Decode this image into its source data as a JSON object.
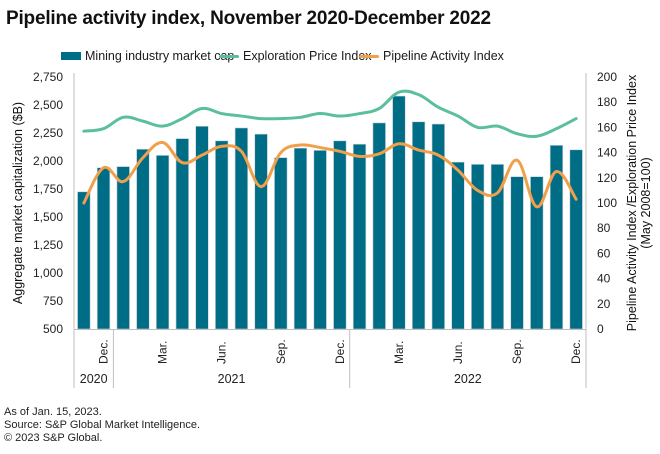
{
  "title": "Pipeline activity index, November 2020-December 2022",
  "legend": {
    "bar_label": "Mining industry market cap",
    "exploration_label": "Exploration Price Index",
    "pipeline_label": "Pipeline Activity Index"
  },
  "colors": {
    "bar": "#006D87",
    "exploration": "#5BBF9C",
    "pipeline": "#F0A04B",
    "axis": "#bfbfbf"
  },
  "footer": {
    "line1": "As of Jan. 15, 2023.",
    "line2": "Source: S&P Global Market Intelligence.",
    "line3": "© 2023 S&P Global."
  },
  "chart_data": {
    "type": "bar",
    "title": "Pipeline activity index, November 2020-December 2022",
    "xlabel": "",
    "ylabel": "Aggregate market capitalization ($B)",
    "y2label": "Pipeline Activity Index /Exploration Price Index",
    "y2label_sub": "(May 2008=100)",
    "ylim": [
      500,
      2750
    ],
    "y2lim": [
      0,
      200
    ],
    "yticks": [
      "2,750",
      "2,500",
      "2,250",
      "2,000",
      "1,750",
      "1,500",
      "1,250",
      "1,000",
      "750",
      "500"
    ],
    "y2ticks": [
      "200",
      "180",
      "160",
      "140",
      "120",
      "100",
      "80",
      "60",
      "40",
      "20",
      "0"
    ],
    "grid": false,
    "legend_position": "top",
    "categories": [
      "Nov 2020",
      "Dec 2020",
      "Jan 2021",
      "Feb 2021",
      "Mar 2021",
      "Apr 2021",
      "May 2021",
      "Jun 2021",
      "Jul 2021",
      "Aug 2021",
      "Sep 2021",
      "Oct 2021",
      "Nov 2021",
      "Dec 2021",
      "Jan 2022",
      "Feb 2022",
      "Mar 2022",
      "Apr 2022",
      "May 2022",
      "Jun 2022",
      "Jul 2022",
      "Aug 2022",
      "Sep 2022",
      "Oct 2022",
      "Nov 2022",
      "Dec 2022"
    ],
    "month_tick_labels": [
      {
        "index": 1,
        "label": "Dec."
      },
      {
        "index": 4,
        "label": "Mar."
      },
      {
        "index": 7,
        "label": "Jun."
      },
      {
        "index": 10,
        "label": "Sep."
      },
      {
        "index": 13,
        "label": "Dec."
      },
      {
        "index": 16,
        "label": "Mar."
      },
      {
        "index": 19,
        "label": "Jun."
      },
      {
        "index": 22,
        "label": "Sep."
      },
      {
        "index": 25,
        "label": "Dec."
      }
    ],
    "year_groups": [
      {
        "label": "2020",
        "start": 0,
        "end": 1
      },
      {
        "label": "2021",
        "start": 2,
        "end": 13
      },
      {
        "label": "2022",
        "start": 14,
        "end": 25
      }
    ],
    "series": [
      {
        "name": "Mining industry market cap",
        "type": "bar",
        "axis": "left",
        "values": [
          1725,
          1940,
          1950,
          2105,
          2050,
          2200,
          2310,
          2180,
          2295,
          2240,
          2030,
          2115,
          2095,
          2180,
          2150,
          2340,
          2580,
          2350,
          2330,
          1990,
          1970,
          1970,
          1860,
          1860,
          2140,
          2100
        ]
      },
      {
        "name": "Exploration Price Index",
        "type": "line",
        "axis": "right",
        "values": [
          157,
          159,
          168,
          165,
          161,
          167,
          175,
          171,
          169,
          167,
          167,
          168,
          171,
          169,
          171,
          175,
          188,
          186,
          176,
          169,
          160,
          161,
          155,
          153,
          159,
          167
        ]
      },
      {
        "name": "Pipeline Activity Index",
        "type": "line",
        "axis": "right",
        "values": [
          100,
          128,
          117,
          136,
          148,
          132,
          138,
          145,
          141,
          113,
          140,
          146,
          144,
          141,
          137,
          139,
          147,
          142,
          138,
          126,
          110,
          108,
          134,
          97,
          125,
          103
        ]
      }
    ]
  }
}
